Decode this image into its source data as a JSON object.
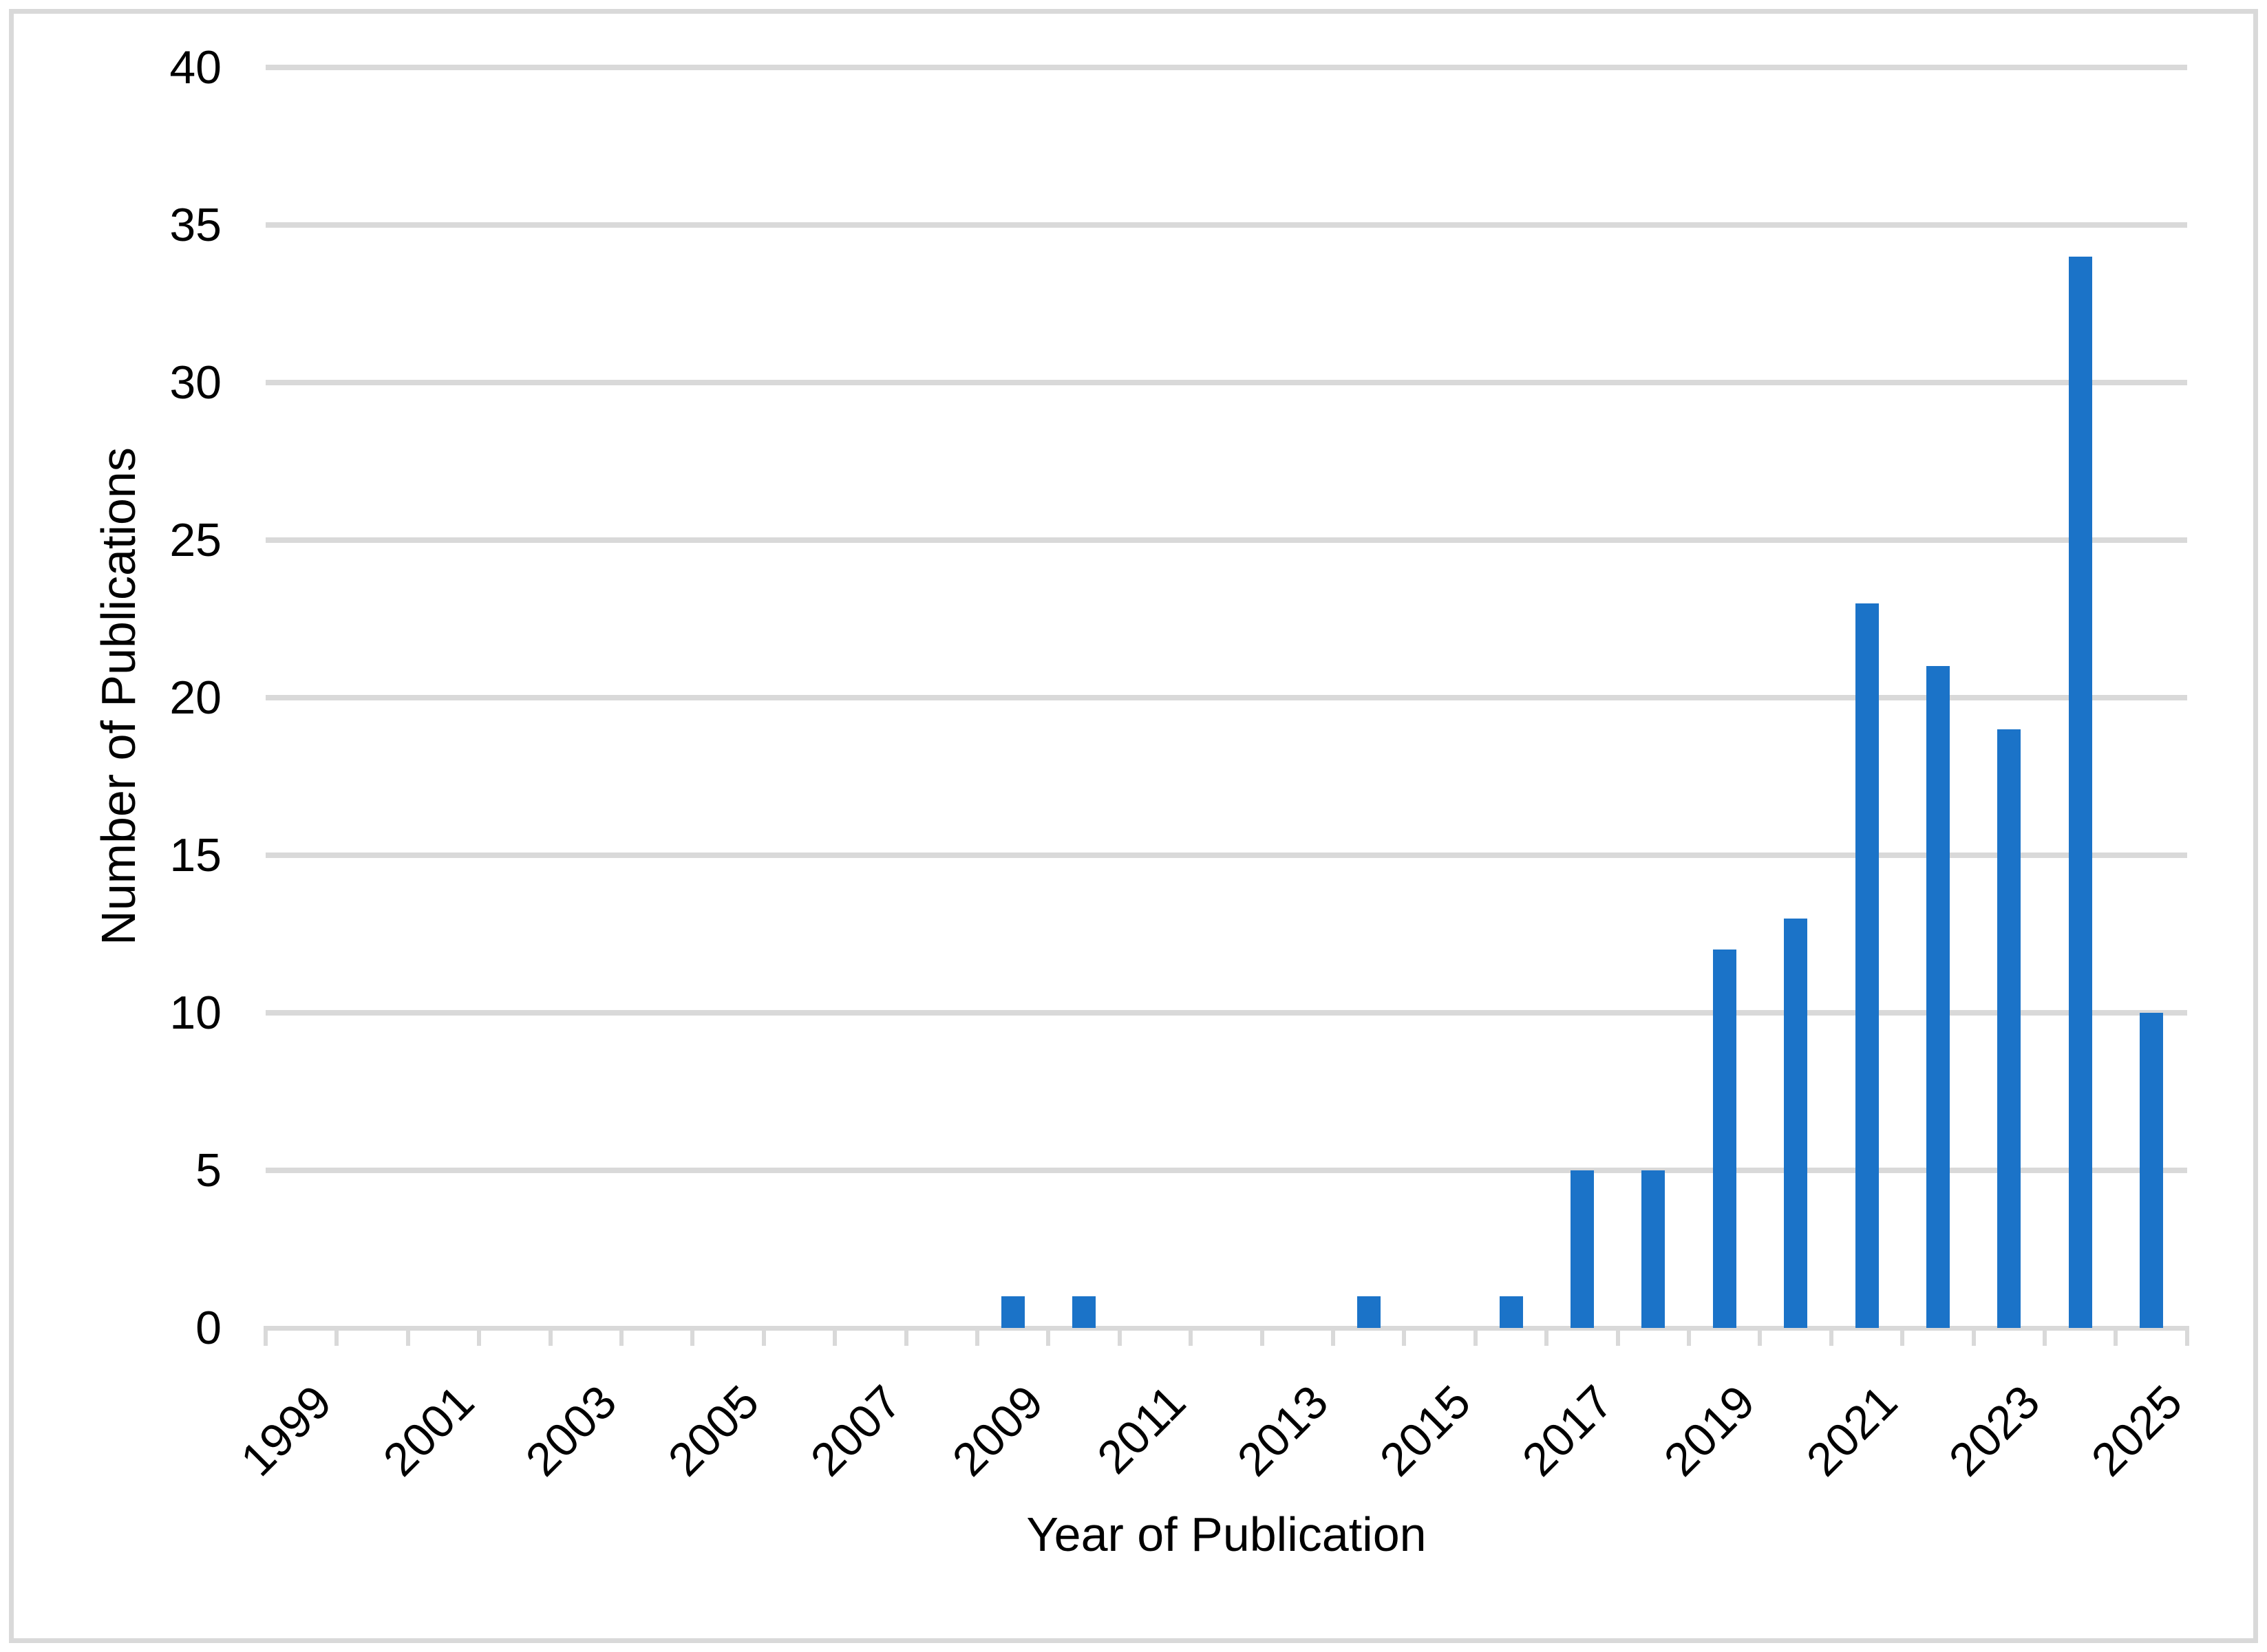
{
  "figure": {
    "background": "#FFFFFF",
    "border_color": "#D9D9D9"
  },
  "chart_data": {
    "type": "bar",
    "title": "",
    "xlabel": "Year of Publication",
    "ylabel": "Number of Publications",
    "categories": [
      "1999",
      "2000",
      "2001",
      "2002",
      "2003",
      "2004",
      "2005",
      "2006",
      "2007",
      "2008",
      "2009",
      "2010",
      "2011",
      "2012",
      "2013",
      "2014",
      "2015",
      "2016",
      "2017",
      "2018",
      "2019",
      "2020",
      "2021",
      "2022",
      "2023",
      "2024",
      "2025"
    ],
    "values": [
      0,
      0,
      0,
      0,
      0,
      0,
      0,
      0,
      0,
      0,
      1,
      1,
      0,
      0,
      0,
      1,
      0,
      1,
      5,
      5,
      12,
      13,
      23,
      21,
      19,
      34,
      10
    ],
    "x_tick_labels_shown": [
      "1999",
      "2001",
      "2003",
      "2005",
      "2007",
      "2009",
      "2011",
      "2013",
      "2015",
      "2017",
      "2019",
      "2021",
      "2023",
      "2025"
    ],
    "x_label_interval": 2,
    "yticks": [
      0,
      5,
      10,
      15,
      20,
      25,
      30,
      35,
      40
    ],
    "ylim": [
      0,
      40
    ],
    "grid": true,
    "legend": false,
    "bar_color": "#1B73C8",
    "gridline_color": "#D9D9D9",
    "axis_color": "#D9D9D9",
    "text_color": "#000000"
  }
}
